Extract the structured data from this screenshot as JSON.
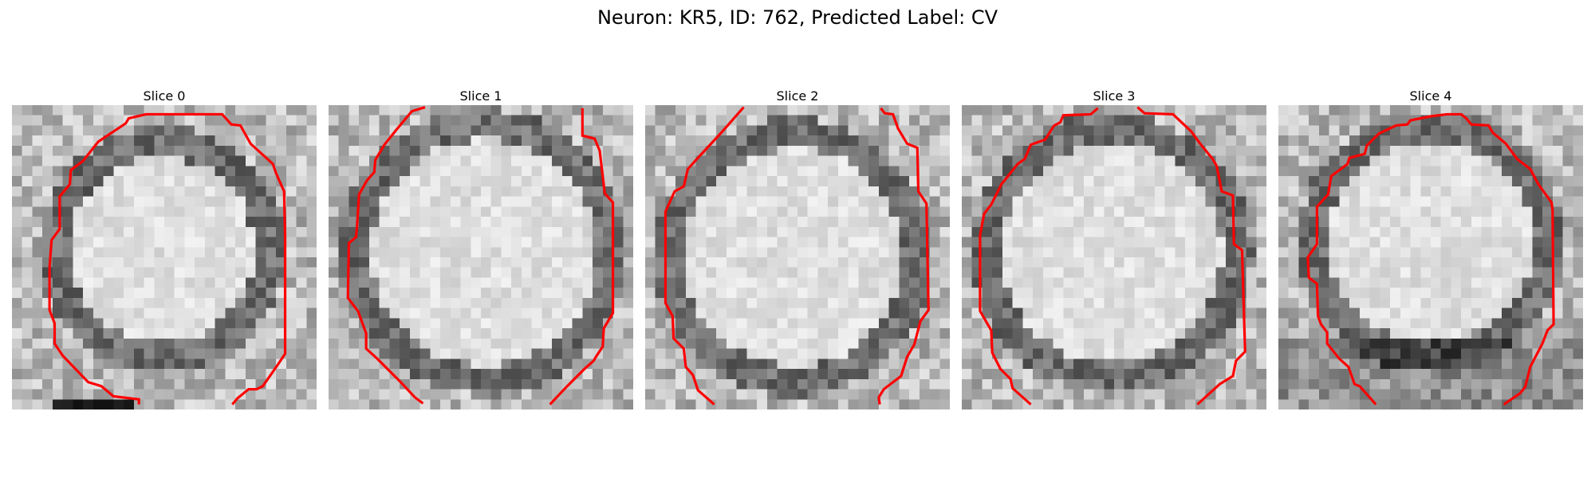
{
  "figure": {
    "title": "Neuron: KR5, ID: 762, Predicted Label: CV",
    "contour_color": "#ff0000"
  },
  "slices": [
    {
      "title": "Slice 0"
    },
    {
      "title": "Slice 1"
    },
    {
      "title": "Slice 2"
    },
    {
      "title": "Slice 3"
    },
    {
      "title": "Slice 4"
    }
  ]
}
